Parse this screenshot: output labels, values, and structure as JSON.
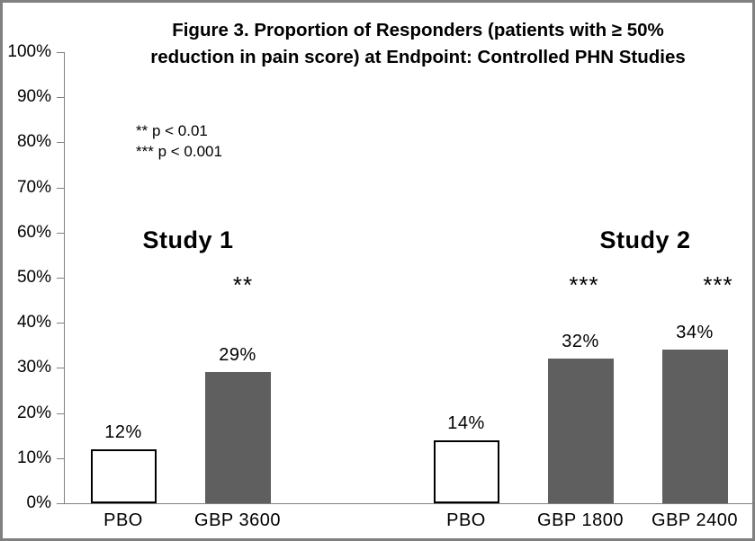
{
  "chart_data": {
    "type": "bar",
    "title": "Figure 3. Proportion of Responders (patients with ≥ 50% reduction in pain score) at Endpoint: Controlled PHN Studies",
    "title_lines": [
      "Figure 3. Proportion of Responders (patients with ≥ 50%",
      "reduction in pain score) at Endpoint: Controlled PHN Studies"
    ],
    "ylabel": "",
    "ylim": [
      0,
      100
    ],
    "ytick_step": 10,
    "yticks": [
      "0%",
      "10%",
      "20%",
      "30%",
      "40%",
      "50%",
      "60%",
      "70%",
      "80%",
      "90%",
      "100%"
    ],
    "grid": false,
    "legend_position": "upper-left-inside",
    "significance_legend": [
      "** p < 0.01",
      "*** p < 0.001"
    ],
    "groups": [
      {
        "name": "Study 1",
        "bars": [
          {
            "label": "PBO",
            "value": 12,
            "value_label": "12%",
            "style": "placebo",
            "significance": ""
          },
          {
            "label": "GBP 3600",
            "value": 29,
            "value_label": "29%",
            "style": "treatment",
            "significance": "**"
          }
        ]
      },
      {
        "name": "Study 2",
        "bars": [
          {
            "label": "PBO",
            "value": 14,
            "value_label": "14%",
            "style": "placebo",
            "significance": ""
          },
          {
            "label": "GBP 1800",
            "value": 32,
            "value_label": "32%",
            "style": "treatment",
            "significance": "***"
          },
          {
            "label": "GBP 2400",
            "value": 34,
            "value_label": "34%",
            "style": "treatment",
            "significance": "***"
          }
        ]
      }
    ],
    "colors": {
      "treatment_bar": "#5f5f5f",
      "placebo_bar": "#ffffff",
      "bar_outline": "#000000",
      "axis": "#808080",
      "chart_border": "#808080",
      "text": "#000000"
    }
  }
}
